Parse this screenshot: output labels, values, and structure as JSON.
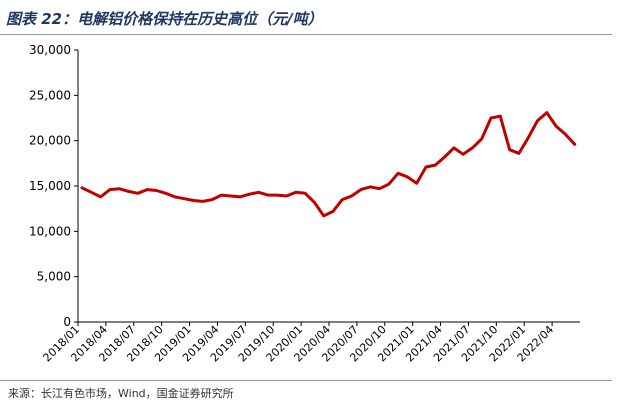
{
  "header": {
    "title": "图表 22：电解铝价格保持在历史高位（元/吨）"
  },
  "footer": {
    "source": "来源：长江有色市场，Wind，国金证券研究所"
  },
  "chart_data": {
    "type": "line",
    "title": "图表 22：电解铝价格保持在历史高位（元/吨）",
    "xlabel": "",
    "ylabel": "",
    "ylim": [
      0,
      30000
    ],
    "yticks": [
      0,
      5000,
      10000,
      15000,
      20000,
      25000,
      30000
    ],
    "ytick_labels": [
      "0",
      "5,000",
      "10,000",
      "15,000",
      "20,000",
      "25,000",
      "30,000"
    ],
    "xticks": [
      "2018/01",
      "2018/04",
      "2018/07",
      "2018/10",
      "2019/01",
      "2019/04",
      "2019/07",
      "2019/10",
      "2020/01",
      "2020/04",
      "2020/07",
      "2020/10",
      "2021/01",
      "2021/04",
      "2021/07",
      "2021/10",
      "2022/01",
      "2022/04"
    ],
    "grid": false,
    "legend": "none",
    "line_color": "#c00000",
    "series": [
      {
        "x": [
          "2018/01",
          "2018/02",
          "2018/03",
          "2018/04",
          "2018/05",
          "2018/06",
          "2018/07",
          "2018/08",
          "2018/09",
          "2018/10",
          "2018/11",
          "2018/12",
          "2019/01",
          "2019/02",
          "2019/03",
          "2019/04",
          "2019/05",
          "2019/06",
          "2019/07",
          "2019/08",
          "2019/09",
          "2019/10",
          "2019/11",
          "2019/12",
          "2020/01",
          "2020/02",
          "2020/03",
          "2020/04",
          "2020/05",
          "2020/06",
          "2020/07",
          "2020/08",
          "2020/09",
          "2020/10",
          "2020/11",
          "2020/12",
          "2021/01",
          "2021/02",
          "2021/03",
          "2021/04",
          "2021/05",
          "2021/06",
          "2021/07",
          "2021/08",
          "2021/09",
          "2021/10",
          "2021/11",
          "2021/12",
          "2022/01",
          "2022/02",
          "2022/03",
          "2022/04",
          "2022/05",
          "2022/06"
        ],
        "values": [
          14800,
          14300,
          13800,
          14600,
          14700,
          14400,
          14200,
          14600,
          14500,
          14200,
          13800,
          13600,
          13400,
          13300,
          13500,
          14000,
          13900,
          13800,
          14100,
          14300,
          14000,
          14000,
          13900,
          14300,
          14200,
          13200,
          11700,
          12200,
          13500,
          13900,
          14600,
          14900,
          14700,
          15200,
          16400,
          16000,
          15300,
          17100,
          17300,
          18200,
          19200,
          18500,
          19200,
          20200,
          22500,
          22700,
          19000,
          18600,
          20300,
          22200,
          23100,
          21600,
          20700,
          19600
        ]
      }
    ]
  }
}
